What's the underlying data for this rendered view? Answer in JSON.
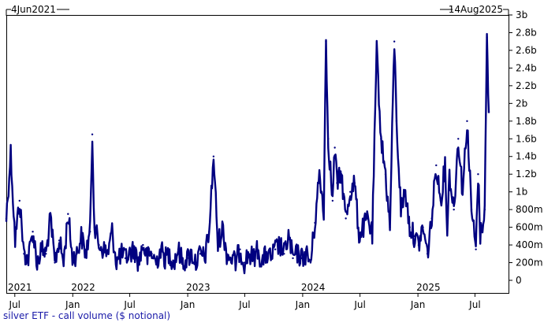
{
  "chart_data": {
    "type": "line",
    "title": "",
    "caption": "silver ETF - call volume ($ notional)",
    "date_range": {
      "start_label": "4Jun2021",
      "end_label": "14Aug2025"
    },
    "y_axis": {
      "side": "right",
      "ticks": [
        "0",
        "200m",
        "400m",
        "600m",
        "800m",
        "1b",
        "1.2b",
        "1.4b",
        "1.6b",
        "1.8b",
        "2b",
        "2.2b",
        "2.4b",
        "2.6b",
        "2.8b",
        "3b"
      ],
      "ylim": [
        0,
        3000000000
      ]
    },
    "x_axis": {
      "month_ticks": [
        "Jul",
        "Jan",
        "Jul",
        "Jan",
        "Jul",
        "Jan",
        "Jul",
        "Jan",
        "Jul"
      ],
      "year_labels": [
        "2021",
        "2022",
        "2023",
        "2024",
        "2025"
      ]
    },
    "grid": false,
    "colors": {
      "line": "#000080",
      "caption": "#1a1aa8",
      "axis": "#000000"
    },
    "series": [
      {
        "x": [
          "2021-06-04",
          "2021-06-18",
          "2021-07-02",
          "2021-07-16",
          "2021-07-30",
          "2021-08-13",
          "2021-08-27",
          "2021-09-10",
          "2021-09-24",
          "2021-10-08",
          "2021-10-22",
          "2021-11-05",
          "2021-11-19",
          "2021-12-03",
          "2021-12-17",
          "2021-12-31",
          "2022-01-14",
          "2022-01-28",
          "2022-02-11",
          "2022-02-25",
          "2022-03-04",
          "2022-03-11",
          "2022-03-25",
          "2022-04-08",
          "2022-04-22",
          "2022-05-06",
          "2022-05-20",
          "2022-06-03",
          "2022-06-17",
          "2022-07-01",
          "2022-07-15",
          "2022-07-29",
          "2022-08-12",
          "2022-08-26",
          "2022-09-09",
          "2022-09-23",
          "2022-10-07",
          "2022-10-21",
          "2022-11-04",
          "2022-11-18",
          "2022-12-02",
          "2022-12-16",
          "2022-12-30",
          "2023-01-13",
          "2023-01-27",
          "2023-02-10",
          "2023-02-24",
          "2023-03-10",
          "2023-03-24",
          "2023-04-07",
          "2023-04-21",
          "2023-05-05",
          "2023-05-19",
          "2023-06-02",
          "2023-06-16",
          "2023-06-30",
          "2023-07-14",
          "2023-07-28",
          "2023-08-11",
          "2023-08-25",
          "2023-09-08",
          "2023-09-22",
          "2023-10-06",
          "2023-10-20",
          "2023-11-03",
          "2023-11-17",
          "2023-12-01",
          "2023-12-15",
          "2023-12-29",
          "2024-01-12",
          "2024-01-26",
          "2024-02-09",
          "2024-02-23",
          "2024-03-08",
          "2024-03-15",
          "2024-03-22",
          "2024-04-05",
          "2024-04-12",
          "2024-04-19",
          "2024-05-03",
          "2024-05-17",
          "2024-05-31",
          "2024-06-14",
          "2024-06-28",
          "2024-07-12",
          "2024-07-26",
          "2024-08-09",
          "2024-08-23",
          "2024-09-06",
          "2024-09-20",
          "2024-10-04",
          "2024-10-18",
          "2024-10-25",
          "2024-11-08",
          "2024-11-22",
          "2024-12-06",
          "2024-12-20",
          "2025-01-03",
          "2025-01-17",
          "2025-01-31",
          "2025-02-14",
          "2025-02-28",
          "2025-03-14",
          "2025-03-28",
          "2025-04-04",
          "2025-04-11",
          "2025-04-25",
          "2025-05-09",
          "2025-05-23",
          "2025-06-06",
          "2025-06-20",
          "2025-07-04",
          "2025-07-11",
          "2025-07-18",
          "2025-08-01",
          "2025-08-08",
          "2025-08-14"
        ],
        "y": [
          700000000,
          1450000000,
          450000000,
          900000000,
          300000000,
          250000000,
          550000000,
          200000000,
          350000000,
          300000000,
          700000000,
          200000000,
          450000000,
          200000000,
          750000000,
          250000000,
          300000000,
          500000000,
          300000000,
          550000000,
          1650000000,
          600000000,
          400000000,
          350000000,
          300000000,
          550000000,
          200000000,
          300000000,
          250000000,
          300000000,
          350000000,
          200000000,
          400000000,
          250000000,
          300000000,
          200000000,
          350000000,
          250000000,
          300000000,
          200000000,
          350000000,
          200000000,
          250000000,
          300000000,
          200000000,
          300000000,
          250000000,
          550000000,
          1400000000,
          400000000,
          600000000,
          300000000,
          250000000,
          200000000,
          350000000,
          200000000,
          300000000,
          250000000,
          350000000,
          200000000,
          300000000,
          250000000,
          350000000,
          400000000,
          300000000,
          500000000,
          250000000,
          300000000,
          250000000,
          300000000,
          200000000,
          650000000,
          1200000000,
          800000000,
          2700000000,
          1600000000,
          900000000,
          1500000000,
          1100000000,
          1200000000,
          700000000,
          1000000000,
          1100000000,
          500000000,
          600000000,
          700000000,
          500000000,
          2600000000,
          1600000000,
          1200000000,
          600000000,
          2700000000,
          1800000000,
          800000000,
          1000000000,
          600000000,
          500000000,
          400000000,
          600000000,
          300000000,
          700000000,
          1300000000,
          900000000,
          1300000000,
          600000000,
          1200000000,
          800000000,
          1600000000,
          1000000000,
          1800000000,
          800000000,
          350000000,
          1200000000,
          500000000,
          800000000,
          2750000000,
          1900000000
        ]
      }
    ]
  }
}
